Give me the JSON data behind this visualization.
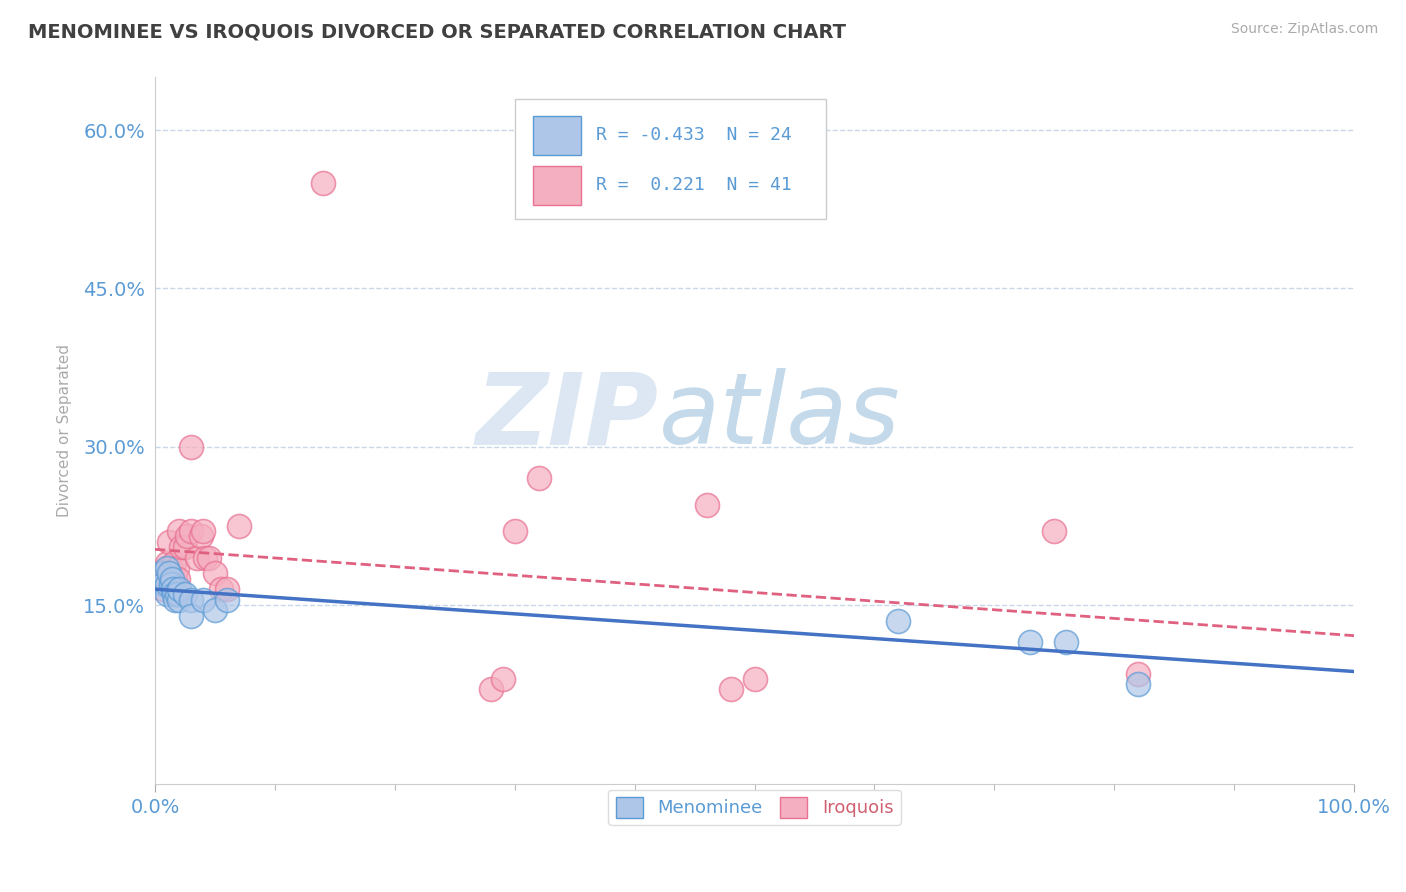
{
  "title": "MENOMINEE VS IROQUOIS DIVORCED OR SEPARATED CORRELATION CHART",
  "source": "Source: ZipAtlas.com",
  "ylabel": "Divorced or Separated",
  "xlim": [
    0,
    1.0
  ],
  "ylim": [
    -0.02,
    0.65
  ],
  "yticks": [
    0.15,
    0.3,
    0.45,
    0.6
  ],
  "ytick_labels": [
    "15.0%",
    "30.0%",
    "45.0%",
    "60.0%"
  ],
  "xticks": [
    0.0,
    1.0
  ],
  "xtick_labels": [
    "0.0%",
    "100.0%"
  ],
  "xtick_minor": [
    0.1,
    0.2,
    0.3,
    0.4,
    0.5,
    0.6,
    0.7,
    0.8,
    0.9
  ],
  "menominee_color": "#aec6e8",
  "iroquois_color": "#f4afc0",
  "menominee_edge_color": "#5b9bd5",
  "iroquois_edge_color": "#e87090",
  "menominee_trend_color": "#4472c4",
  "iroquois_trend_color": "#e06080",
  "background_color": "#ffffff",
  "grid_color": "#c8d8e8",
  "axis_label_color": "#5b9bd5",
  "title_color": "#404040",
  "watermark_zip": "ZIP",
  "watermark_atlas": "atlas",
  "legend_R_menominee": "-0.433",
  "legend_N_menominee": "24",
  "legend_R_iroquois": "0.221",
  "legend_N_iroquois": "41",
  "menominee_x": [
    0.005,
    0.007,
    0.01,
    0.01,
    0.01,
    0.012,
    0.013,
    0.014,
    0.015,
    0.016,
    0.017,
    0.018,
    0.02,
    0.02,
    0.025,
    0.03,
    0.03,
    0.04,
    0.05,
    0.06,
    0.62,
    0.73,
    0.76,
    0.82
  ],
  "menominee_y": [
    0.18,
    0.17,
    0.16,
    0.17,
    0.185,
    0.18,
    0.17,
    0.175,
    0.165,
    0.16,
    0.155,
    0.16,
    0.155,
    0.165,
    0.16,
    0.155,
    0.14,
    0.155,
    0.145,
    0.155,
    0.135,
    0.115,
    0.115,
    0.075
  ],
  "iroquois_x": [
    0.005,
    0.006,
    0.007,
    0.008,
    0.009,
    0.01,
    0.011,
    0.012,
    0.012,
    0.013,
    0.014,
    0.015,
    0.016,
    0.017,
    0.018,
    0.019,
    0.02,
    0.022,
    0.025,
    0.027,
    0.03,
    0.03,
    0.035,
    0.038,
    0.04,
    0.042,
    0.045,
    0.05,
    0.055,
    0.06,
    0.07,
    0.14,
    0.28,
    0.29,
    0.3,
    0.32,
    0.46,
    0.48,
    0.5,
    0.75,
    0.82
  ],
  "iroquois_y": [
    0.175,
    0.18,
    0.165,
    0.175,
    0.185,
    0.19,
    0.17,
    0.175,
    0.21,
    0.185,
    0.175,
    0.175,
    0.19,
    0.175,
    0.185,
    0.175,
    0.22,
    0.205,
    0.205,
    0.215,
    0.22,
    0.3,
    0.195,
    0.215,
    0.22,
    0.195,
    0.195,
    0.18,
    0.165,
    0.165,
    0.225,
    0.55,
    0.07,
    0.08,
    0.22,
    0.27,
    0.245,
    0.07,
    0.08,
    0.22,
    0.085
  ]
}
